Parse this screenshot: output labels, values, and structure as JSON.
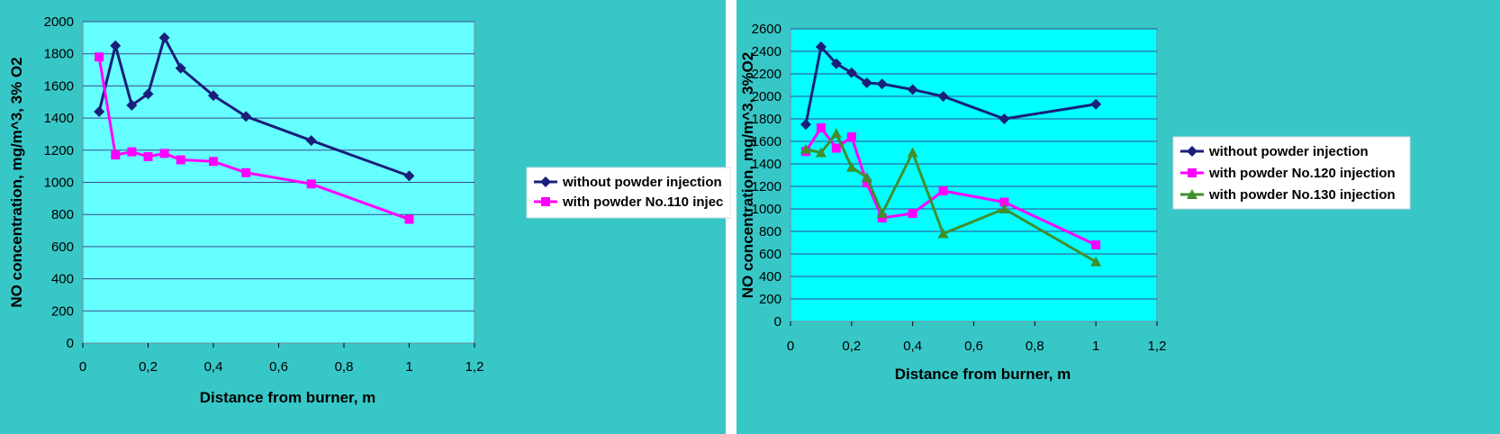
{
  "colors": {
    "panel_bg": "#38c7c7",
    "divider": "#ffffff",
    "grid": "#3a4a8c"
  },
  "chart_data": [
    {
      "type": "line",
      "title": "",
      "xlabel": "Distance from burner, m",
      "ylabel": "NO concentration, mg/m^3, 3% O2",
      "xlim": [
        0,
        1.2
      ],
      "ylim": [
        0,
        2000
      ],
      "x_ticks": [
        "0",
        "0,2",
        "0,4",
        "0,6",
        "0,8",
        "1",
        "1,2"
      ],
      "y_ticks": [
        "0",
        "200",
        "400",
        "600",
        "800",
        "1000",
        "1200",
        "1400",
        "1600",
        "1800",
        "2000"
      ],
      "plot_bg": "#66ffff",
      "grid": true,
      "legend_position": "right",
      "series": [
        {
          "name": "without powder injection",
          "color": "#1a1f7a",
          "marker": "diamond",
          "x": [
            0.05,
            0.1,
            0.15,
            0.2,
            0.25,
            0.3,
            0.4,
            0.5,
            0.7,
            1.0
          ],
          "y": [
            1440,
            1850,
            1480,
            1550,
            1900,
            1710,
            1540,
            1410,
            1260,
            1040
          ]
        },
        {
          "name": "with powder No.110 injec",
          "color": "#ff00ff",
          "marker": "square",
          "x": [
            0.05,
            0.1,
            0.15,
            0.2,
            0.25,
            0.3,
            0.4,
            0.5,
            0.7,
            1.0
          ],
          "y": [
            1780,
            1170,
            1190,
            1160,
            1180,
            1140,
            1130,
            1060,
            990,
            770
          ]
        }
      ]
    },
    {
      "type": "line",
      "title": "",
      "xlabel": "Distance from burner, m",
      "ylabel": "NO concentration, mg/m^3, 3%O2",
      "xlim": [
        0,
        1.2
      ],
      "ylim": [
        0,
        2600
      ],
      "x_ticks": [
        "0",
        "0,2",
        "0,4",
        "0,6",
        "0,8",
        "1",
        "1,2"
      ],
      "y_ticks": [
        "0",
        "200",
        "400",
        "600",
        "800",
        "1000",
        "1200",
        "1400",
        "1600",
        "1800",
        "2000",
        "2200",
        "2400",
        "2600"
      ],
      "plot_bg": "#00ffff",
      "grid": true,
      "legend_position": "right",
      "series": [
        {
          "name": "without powder injection",
          "color": "#1a1f7a",
          "marker": "diamond",
          "x": [
            0.05,
            0.1,
            0.15,
            0.2,
            0.25,
            0.3,
            0.4,
            0.5,
            0.7,
            1.0
          ],
          "y": [
            1750,
            2440,
            2290,
            2210,
            2120,
            2110,
            2060,
            2000,
            1800,
            1930
          ]
        },
        {
          "name": "with powder No.120 injection",
          "color": "#ff00ff",
          "marker": "square",
          "x": [
            0.05,
            0.1,
            0.15,
            0.2,
            0.25,
            0.3,
            0.4,
            0.5,
            0.7,
            1.0
          ],
          "y": [
            1510,
            1720,
            1540,
            1640,
            1230,
            920,
            960,
            1160,
            1060,
            680
          ]
        },
        {
          "name": "with powder No.130 injection",
          "color": "#3f8f2f",
          "marker": "triangle",
          "x": [
            0.05,
            0.1,
            0.15,
            0.2,
            0.25,
            0.3,
            0.4,
            0.5,
            0.7,
            1.0
          ],
          "y": [
            1530,
            1500,
            1670,
            1370,
            1280,
            960,
            1500,
            780,
            1000,
            530
          ]
        }
      ]
    }
  ]
}
